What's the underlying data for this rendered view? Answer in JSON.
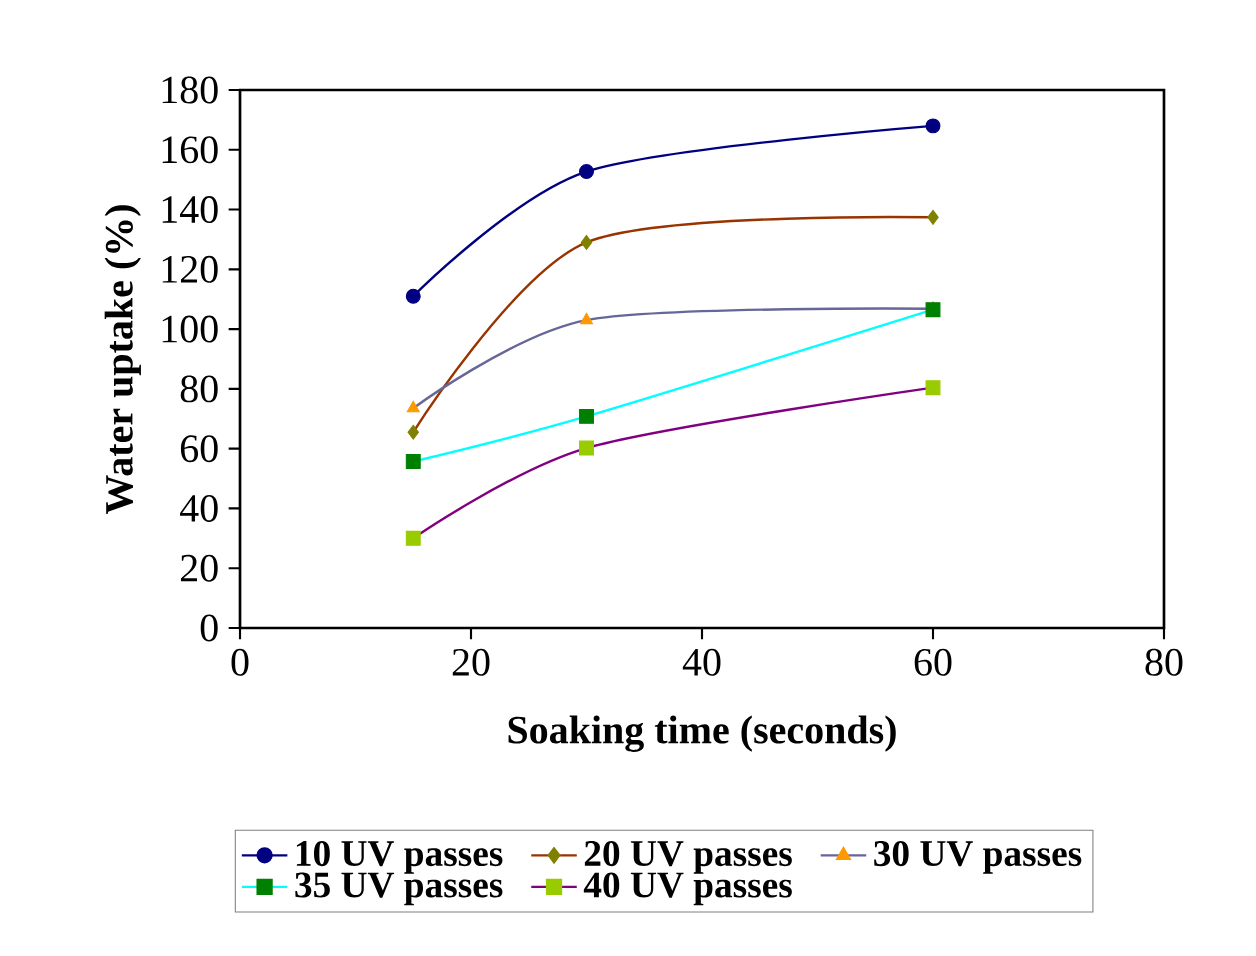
{
  "chart_data": {
    "type": "line",
    "xlabel": "Soaking time (seconds)",
    "ylabel": "Water uptake (%)",
    "x": [
      15,
      30,
      60
    ],
    "xlim": [
      0,
      80
    ],
    "xticks": [
      0,
      20,
      40,
      60,
      80
    ],
    "ylim": [
      0,
      180
    ],
    "yticks": [
      0,
      20,
      40,
      60,
      80,
      100,
      120,
      140,
      160,
      180
    ],
    "grid": false,
    "legend": "bottom",
    "series": [
      {
        "name": "10 UV passes",
        "color": "#000080",
        "colors": [
          "#000080",
          "#000080",
          "#000080"
        ],
        "marker": "circle",
        "values": [
          111,
          152.7,
          168
        ]
      },
      {
        "name": "20 UV passes",
        "color": "#993300",
        "colors": [
          "#808000",
          "#808000",
          "#808000"
        ],
        "marker": "diamond",
        "values": [
          65.5,
          129,
          137.4
        ]
      },
      {
        "name": "30 UV passes",
        "color": "#666699",
        "colors": [
          "#ff9900",
          "#ff9900",
          "#ff9900"
        ],
        "marker": "triangle",
        "values": [
          73.5,
          103,
          106.8
        ]
      },
      {
        "name": "35 UV passes",
        "color": "#00ffff",
        "colors": [
          "#008000",
          "#008000",
          "#008000"
        ],
        "marker": "square",
        "values": [
          55.7,
          70.8,
          106.5
        ]
      },
      {
        "name": "40 UV passes",
        "color": "#800080",
        "colors": [
          "#99cc00",
          "#99cc00",
          "#99cc00"
        ],
        "marker": "square",
        "values": [
          30,
          60.2,
          80.4
        ]
      }
    ]
  }
}
